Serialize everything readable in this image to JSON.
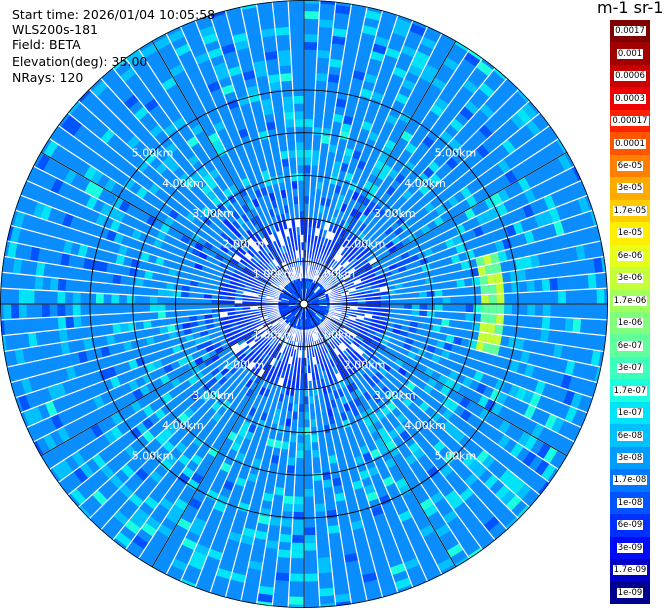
{
  "header": {
    "start_time": "Start time: 2026/01/04 10:05:58",
    "instrument": "WLS200s-181",
    "field": "Field: BETA",
    "elevation": "Elevation(deg): 35.00",
    "nrays": "NRays: 120"
  },
  "colorbar": {
    "title": "m-1 sr-1",
    "labels": [
      "0.0017",
      "0.001",
      "0.0006",
      "0.0003",
      "0.00017",
      "0.0001",
      "6e-05",
      "3e-05",
      "1.7e-05",
      "1e-05",
      "6e-06",
      "3e-06",
      "1.7e-06",
      "1e-06",
      "6e-07",
      "3e-07",
      "1.7e-07",
      "1e-07",
      "6e-08",
      "3e-08",
      "1.7e-08",
      "1e-08",
      "6e-09",
      "3e-09",
      "1.7e-09",
      "1e-09"
    ],
    "colors": [
      "#7f0000",
      "#a00000",
      "#c80000",
      "#ee0000",
      "#ff2200",
      "#ff5500",
      "#ff8000",
      "#ffaa00",
      "#ffcc00",
      "#ffee00",
      "#e6ff1a",
      "#c4ff3a",
      "#a0ff5a",
      "#80ff7c",
      "#60ff9c",
      "#3cffbc",
      "#1affe0",
      "#00e4f8",
      "#00c0ff",
      "#009cff",
      "#0078ff",
      "#0054ff",
      "#0030ff",
      "#000cf8",
      "#0000c8",
      "#000090"
    ]
  },
  "chart_data": {
    "type": "heatmap",
    "projection": "polar PPI",
    "field": "BETA",
    "elevation_deg": 35.0,
    "n_rays": 120,
    "range_rings_km": [
      1,
      2,
      3,
      4,
      5
    ],
    "range_labels": [
      "1.00km",
      "2.00km",
      "3.00km",
      "4.00km",
      "5.00km"
    ],
    "max_range_km": 7.1,
    "colormap": "jet",
    "value_unit": "m-1 sr-1",
    "value_range": [
      1e-09,
      0.0017
    ],
    "dominant_value": 6e-08,
    "feature": {
      "azimuth_deg": [
        75,
        105
      ],
      "range_km": [
        4.1,
        4.7
      ],
      "value": 1e-06
    }
  }
}
